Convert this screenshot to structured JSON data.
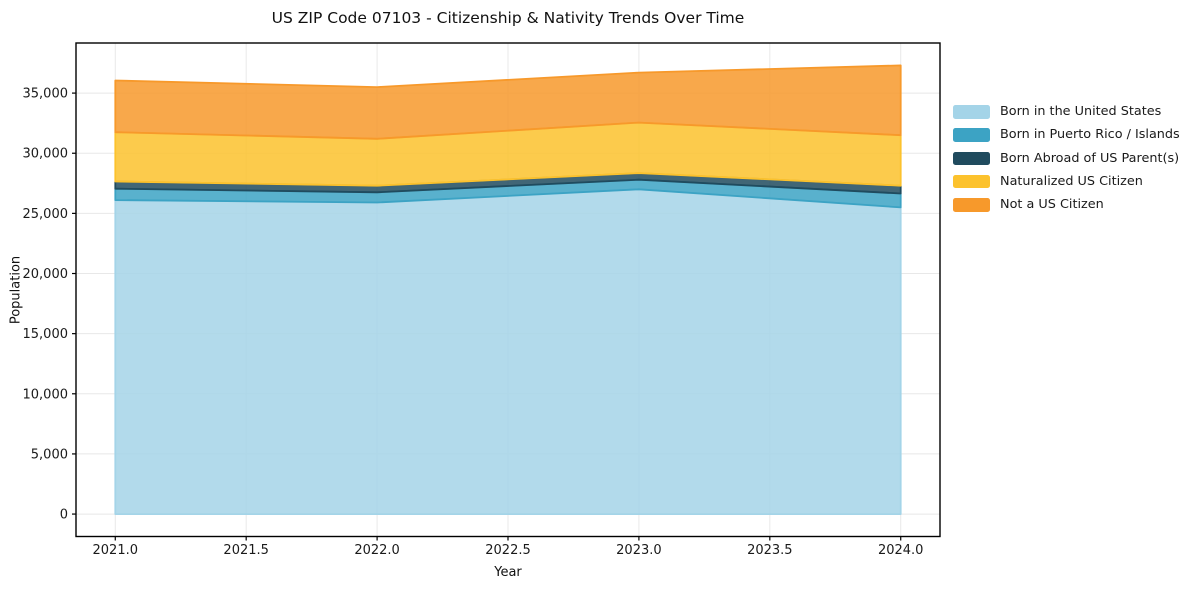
{
  "chart_data": {
    "type": "area",
    "stacked": true,
    "title": "US ZIP Code 07103 - Citizenship & Nativity Trends Over Time",
    "xlabel": "Year",
    "ylabel": "Population",
    "x": [
      2021,
      2022,
      2023,
      2024
    ],
    "series": [
      {
        "name": "Born in the United States",
        "color": "#a4d4e8",
        "values": [
          26100,
          25900,
          27000,
          25500
        ]
      },
      {
        "name": "Born in Puerto Rico / Islands",
        "color": "#3ca3c4",
        "values": [
          950,
          850,
          800,
          1150
        ]
      },
      {
        "name": "Born Abroad of US Parent(s)",
        "color": "#204b5e",
        "values": [
          600,
          550,
          550,
          650
        ]
      },
      {
        "name": "Naturalized US Citizen",
        "color": "#fcc22d",
        "values": [
          4100,
          3900,
          4200,
          4200
        ]
      },
      {
        "name": "Not a US Citizen",
        "color": "#f7992b",
        "values": [
          4300,
          4300,
          4150,
          5800
        ]
      }
    ],
    "totals": [
      36050,
      35500,
      36700,
      37300
    ],
    "xticks": [
      2021.0,
      2021.5,
      2022.0,
      2022.5,
      2023.0,
      2023.5,
      2024.0
    ],
    "yticks": [
      0,
      5000,
      10000,
      15000,
      20000,
      25000,
      30000,
      35000
    ],
    "xlim": [
      2020.85,
      2024.15
    ],
    "ylim": [
      -1865,
      39165
    ],
    "grid": true,
    "grid_color": "#e8e8e8",
    "fill_opacity": 0.85,
    "legend_position": "right",
    "frame_color": "#000000",
    "text_color": "#1a1a1a"
  }
}
